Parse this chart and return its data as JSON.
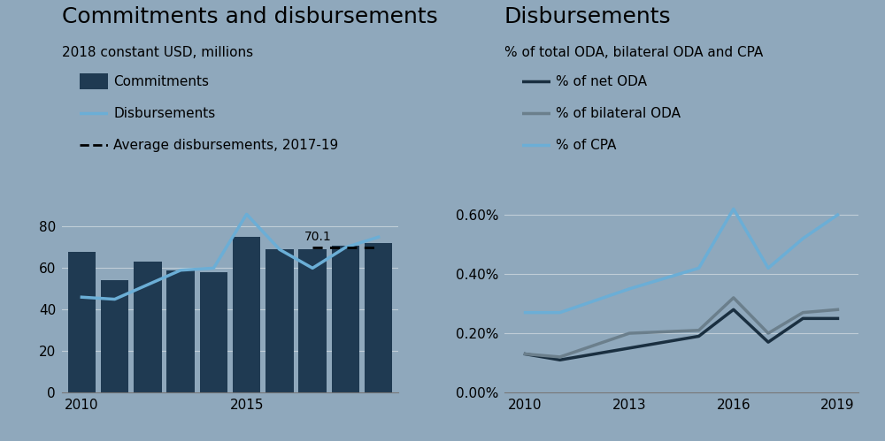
{
  "bg_color": "#8fa8bc",
  "left_title": "Commitments and disbursements",
  "left_subtitle": "2018 constant USD, millions",
  "right_title": "Disbursements",
  "right_subtitle": "% of total ODA, bilateral ODA and CPA",
  "bar_years": [
    2010,
    2011,
    2012,
    2013,
    2014,
    2015,
    2016,
    2017,
    2018,
    2019
  ],
  "bar_values": [
    68,
    54,
    63,
    59,
    58,
    75,
    69,
    69,
    71,
    72
  ],
  "bar_color": "#1f3a52",
  "line_disb_values": [
    46,
    45,
    52,
    59,
    60,
    86,
    69,
    60,
    70,
    75
  ],
  "line_disb_color": "#6baed6",
  "avg_value": 70.1,
  "avg_start": 2017,
  "avg_end": 2019,
  "avg_label": "70.1",
  "right_years": [
    2010,
    2011,
    2013,
    2015,
    2016,
    2017,
    2018,
    2019
  ],
  "pct_net_oda": [
    0.0013,
    0.0011,
    0.0015,
    0.0019,
    0.0028,
    0.0017,
    0.0025,
    0.0025
  ],
  "pct_bilateral_oda": [
    0.0013,
    0.0012,
    0.002,
    0.0021,
    0.0032,
    0.002,
    0.0027,
    0.0028
  ],
  "pct_cpa": [
    0.0027,
    0.0027,
    0.0035,
    0.0042,
    0.0062,
    0.0042,
    0.0052,
    0.006
  ],
  "net_oda_color": "#1a2f40",
  "bilateral_oda_color": "#6b7f8c",
  "cpa_color": "#6baed6",
  "ylim_left": [
    0,
    100
  ],
  "ylim_right": [
    0,
    0.007
  ],
  "yticks_left": [
    0,
    20,
    40,
    60,
    80
  ],
  "yticks_right": [
    0.0,
    0.002,
    0.004,
    0.006
  ],
  "xticks_right": [
    2010,
    2013,
    2016,
    2019
  ],
  "grid_color": "#c0cdd7",
  "title_fontsize": 18,
  "subtitle_fontsize": 11,
  "legend_fontsize": 11,
  "tick_fontsize": 11
}
